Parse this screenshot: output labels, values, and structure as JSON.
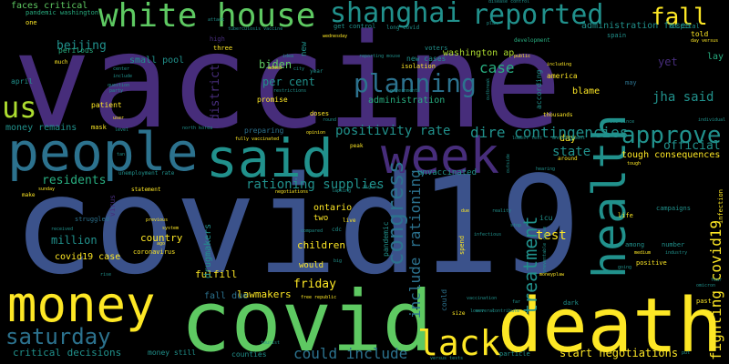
{
  "colors": {
    "background": "#000000",
    "purple": "#472d7b",
    "indigo": "#3b528b",
    "blue": "#2c728e",
    "teal": "#21918c",
    "green": "#28ae80",
    "lime": "#5ec962",
    "yellowgreen": "#addc30",
    "yellow": "#fde725"
  },
  "words": [
    {
      "text": "vaccine",
      "color": "purple"
    },
    {
      "text": "covid19",
      "color": "indigo"
    },
    {
      "text": "covid",
      "color": "lime"
    },
    {
      "text": "death",
      "color": "yellow"
    },
    {
      "text": "money",
      "color": "yellow"
    },
    {
      "text": "people",
      "color": "blue"
    },
    {
      "text": "said",
      "color": "teal"
    },
    {
      "text": "week",
      "color": "purple"
    },
    {
      "text": "health",
      "color": "teal"
    },
    {
      "text": "white house",
      "color": "lime"
    },
    {
      "text": "shanghai",
      "color": "teal"
    },
    {
      "text": "reported",
      "color": "teal"
    },
    {
      "text": "fall",
      "color": "yellow"
    },
    {
      "text": "us",
      "color": "yellowgreen"
    },
    {
      "text": "approve",
      "color": "teal"
    },
    {
      "text": "lack",
      "color": "yellow"
    },
    {
      "text": "saturday",
      "color": "blue"
    },
    {
      "text": "planning",
      "color": "blue"
    },
    {
      "text": "congress",
      "color": "blue"
    },
    {
      "text": "treatment",
      "color": "teal"
    },
    {
      "text": "fighting covid19",
      "color": "yellow"
    },
    {
      "text": "dire contingencies",
      "color": "teal"
    },
    {
      "text": "positivity rate",
      "color": "teal"
    },
    {
      "text": "rationing supplies",
      "color": "teal"
    },
    {
      "text": "include rationing",
      "color": "blue"
    },
    {
      "text": "could include",
      "color": "blue"
    },
    {
      "text": "start negotiations",
      "color": "yellow"
    },
    {
      "text": "critical decisions",
      "color": "teal"
    },
    {
      "text": "jha said",
      "color": "teal"
    },
    {
      "text": "case",
      "color": "green"
    },
    {
      "text": "state",
      "color": "teal"
    },
    {
      "text": "test",
      "color": "yellow"
    },
    {
      "text": "beijing",
      "color": "teal"
    },
    {
      "text": "friday",
      "color": "yellow"
    },
    {
      "text": "per cent",
      "color": "teal"
    },
    {
      "text": "biden",
      "color": "lime"
    },
    {
      "text": "district",
      "color": "purple"
    },
    {
      "text": "official",
      "color": "teal"
    },
    {
      "text": "residents",
      "color": "green"
    },
    {
      "text": "million",
      "color": "teal"
    },
    {
      "text": "country",
      "color": "yellow"
    },
    {
      "text": "covid19 case",
      "color": "yellow"
    },
    {
      "text": "children",
      "color": "yellow"
    },
    {
      "text": "fulfill",
      "color": "yellow"
    },
    {
      "text": "lawmakers",
      "color": "yellow"
    },
    {
      "text": "fall due",
      "color": "blue"
    },
    {
      "text": "money remains",
      "color": "teal"
    },
    {
      "text": "faces critical",
      "color": "lime"
    },
    {
      "text": "pandemic washington",
      "color": "green"
    },
    {
      "text": "washington ap",
      "color": "yellowgreen"
    },
    {
      "text": "administration faces",
      "color": "teal"
    },
    {
      "text": "administration",
      "color": "green"
    },
    {
      "text": "small pool",
      "color": "teal"
    },
    {
      "text": "tough consequences",
      "color": "yellow"
    },
    {
      "text": "drugmakers",
      "color": "teal"
    },
    {
      "text": "ontario",
      "color": "yellow"
    },
    {
      "text": "unvaccinated",
      "color": "teal"
    },
    {
      "text": "blame",
      "color": "yellow"
    },
    {
      "text": "day",
      "color": "yellow"
    },
    {
      "text": "yet",
      "color": "purple"
    },
    {
      "text": "lay",
      "color": "green"
    },
    {
      "text": "told",
      "color": "yellow"
    },
    {
      "text": "money still",
      "color": "teal"
    },
    {
      "text": "counties",
      "color": "teal"
    },
    {
      "text": "would",
      "color": "yellow"
    },
    {
      "text": "two",
      "color": "yellow"
    },
    {
      "text": "april",
      "color": "teal"
    },
    {
      "text": "patient",
      "color": "yellow"
    },
    {
      "text": "mask",
      "color": "yellow"
    },
    {
      "text": "new",
      "color": "teal"
    },
    {
      "text": "pandemic",
      "color": "teal"
    },
    {
      "text": "preparing",
      "color": "blue"
    },
    {
      "text": "promise",
      "color": "yellow"
    },
    {
      "text": "new cases",
      "color": "teal"
    },
    {
      "text": "america",
      "color": "yellow"
    },
    {
      "text": "according",
      "color": "teal"
    },
    {
      "text": "spain",
      "color": "teal"
    },
    {
      "text": "icu",
      "color": "teal"
    },
    {
      "text": "life",
      "color": "yellow"
    },
    {
      "text": "positive",
      "color": "yellow"
    },
    {
      "text": "number",
      "color": "teal"
    },
    {
      "text": "among",
      "color": "teal"
    },
    {
      "text": "campaigns",
      "color": "teal"
    },
    {
      "text": "past",
      "color": "yellow"
    },
    {
      "text": "infection",
      "color": "yellow"
    },
    {
      "text": "particle",
      "color": "teal"
    },
    {
      "text": "virus",
      "color": "purple"
    },
    {
      "text": "coronavirus",
      "color": "yellow"
    },
    {
      "text": "struggled",
      "color": "blue"
    },
    {
      "text": "perilous",
      "color": "green"
    },
    {
      "text": "one",
      "color": "yellow"
    },
    {
      "text": "three",
      "color": "yellow"
    },
    {
      "text": "high",
      "color": "purple"
    },
    {
      "text": "unemployment rate",
      "color": "teal"
    },
    {
      "text": "statement",
      "color": "yellow"
    },
    {
      "text": "make",
      "color": "yellow"
    },
    {
      "text": "spend",
      "color": "yellow"
    },
    {
      "text": "could",
      "color": "blue"
    },
    {
      "text": "size",
      "color": "yellow"
    },
    {
      "text": "peak",
      "color": "yellow"
    },
    {
      "text": "doses",
      "color": "yellow"
    },
    {
      "text": "isolation",
      "color": "yellow"
    },
    {
      "text": "voters",
      "color": "teal"
    },
    {
      "text": "thousands",
      "color": "yellow"
    },
    {
      "text": "get control",
      "color": "teal"
    },
    {
      "text": "long covid",
      "color": "teal"
    },
    {
      "text": "hospital",
      "color": "teal"
    },
    {
      "text": "development",
      "color": "green"
    },
    {
      "text": "live",
      "color": "yellow"
    },
    {
      "text": "cdc",
      "color": "teal"
    },
    {
      "text": "year",
      "color": "teal"
    },
    {
      "text": "fully vaccinated",
      "color": "yellow"
    },
    {
      "text": "free republic",
      "color": "yellow"
    },
    {
      "text": "tourist",
      "color": "teal"
    },
    {
      "text": "vaccination",
      "color": "teal"
    },
    {
      "text": "rate since",
      "color": "teal"
    },
    {
      "text": "tuberculosis vaccine",
      "color": "teal"
    },
    {
      "text": "day versus",
      "color": "yellow"
    },
    {
      "text": "added",
      "color": "yellow"
    },
    {
      "text": "tough",
      "color": "yellow"
    },
    {
      "text": "public",
      "color": "yellow"
    },
    {
      "text": "may",
      "color": "blue"
    },
    {
      "text": "much",
      "color": "yellow"
    },
    {
      "text": "level",
      "color": "teal"
    },
    {
      "text": "ago",
      "color": "yellow"
    },
    {
      "text": "previous",
      "color": "yellow"
    },
    {
      "text": "received",
      "color": "teal"
    },
    {
      "text": "sunday",
      "color": "yellow"
    },
    {
      "text": "north korea",
      "color": "teal"
    },
    {
      "text": "due",
      "color": "yellow"
    },
    {
      "text": "medium",
      "color": "yellow"
    },
    {
      "text": "opinion",
      "color": "yellow"
    },
    {
      "text": "disease control",
      "color": "teal"
    },
    {
      "text": "wednesday",
      "color": "yellow"
    },
    {
      "text": "idea",
      "color": "teal"
    },
    {
      "text": "city",
      "color": "teal"
    },
    {
      "text": "reporting mouse",
      "color": "teal"
    },
    {
      "text": "outbreak",
      "color": "teal"
    },
    {
      "text": "preventable cause",
      "color": "teal"
    },
    {
      "text": "infectious",
      "color": "teal"
    },
    {
      "text": "dark",
      "color": "teal"
    },
    {
      "text": "lower",
      "color": "teal"
    },
    {
      "text": "government",
      "color": "teal"
    },
    {
      "text": "user",
      "color": "yellow"
    },
    {
      "text": "plan",
      "color": "teal"
    },
    {
      "text": "figure",
      "color": "teal"
    },
    {
      "text": "round",
      "color": "teal"
    },
    {
      "text": "restrictions",
      "color": "teal"
    },
    {
      "text": "question",
      "color": "teal"
    },
    {
      "text": "attack",
      "color": "teal"
    },
    {
      "text": "party",
      "color": "teal"
    },
    {
      "text": "include",
      "color": "teal"
    },
    {
      "text": "moneyplaw",
      "color": "yellow"
    },
    {
      "text": "reality",
      "color": "teal"
    },
    {
      "text": "announcement",
      "color": "teal"
    },
    {
      "text": "individual",
      "color": "teal"
    },
    {
      "text": "far",
      "color": "teal"
    },
    {
      "text": "outside",
      "color": "teal"
    },
    {
      "text": "compared",
      "color": "teal"
    },
    {
      "text": "lowest test",
      "color": "teal"
    },
    {
      "text": "center",
      "color": "teal"
    },
    {
      "text": "negotiations",
      "color": "yellow"
    },
    {
      "text": "industry",
      "color": "teal"
    },
    {
      "text": "including",
      "color": "yellow"
    },
    {
      "text": "contribute",
      "color": "teal"
    },
    {
      "text": "versus tests",
      "color": "teal"
    },
    {
      "text": "around",
      "color": "yellow"
    },
    {
      "text": "several",
      "color": "teal"
    },
    {
      "text": "hearing",
      "color": "teal"
    },
    {
      "text": "rise",
      "color": "teal"
    },
    {
      "text": "system",
      "color": "yellow"
    },
    {
      "text": "stop",
      "color": "teal"
    },
    {
      "text": "going",
      "color": "teal"
    },
    {
      "text": "fear",
      "color": "teal"
    },
    {
      "text": "tan",
      "color": "teal"
    },
    {
      "text": "lapsing",
      "color": "teal"
    },
    {
      "text": "omicron",
      "color": "teal"
    },
    {
      "text": "big",
      "color": "teal"
    },
    {
      "text": "put",
      "color": "teal"
    }
  ]
}
